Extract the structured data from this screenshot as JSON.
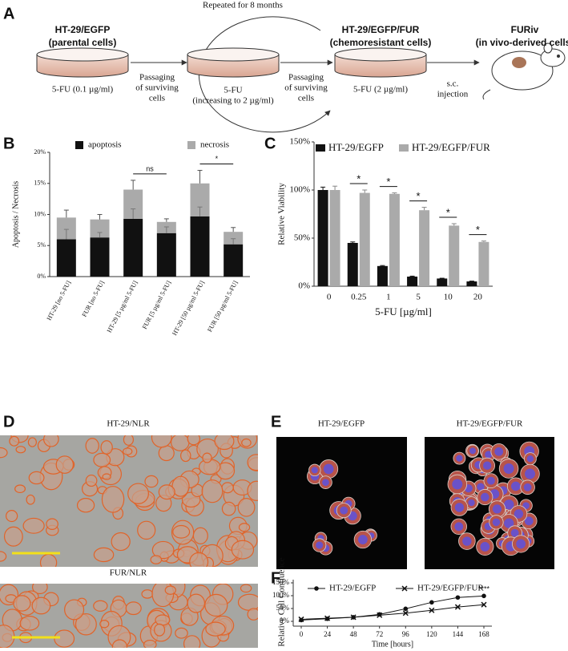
{
  "panels": [
    "A",
    "B",
    "C",
    "D",
    "E",
    "F"
  ],
  "diagram": {
    "loop": "Repeated for 8 months",
    "stages": [
      {
        "title": [
          "HT-29/EGFP",
          "(parental cells)"
        ],
        "treatment": [
          "5-FU (0.1 µg/ml)"
        ]
      },
      {
        "treatment": [
          "5-FU",
          "(increasing to 2 µg/ml)"
        ]
      },
      {
        "title": [
          "HT-29/EGFP/FUR",
          "(chemoresistant cells)"
        ],
        "treatment": [
          "5-FU (2 µg/ml)"
        ]
      },
      {
        "title": [
          "FURiv",
          "(in vivo-derived cells)"
        ]
      }
    ],
    "steps": [
      [
        "Passaging",
        "of surviving",
        "cells"
      ],
      [
        "Passaging",
        "of surviving",
        "cells"
      ],
      [
        "s.c.",
        "injection"
      ]
    ]
  },
  "images": {
    "D": [
      "HT-29/NLR",
      "FUR/NLR"
    ],
    "E": [
      "HT-29/EGFP",
      "HT-29/EGFP/FUR"
    ]
  },
  "chart_data": [
    {
      "type": "stacked_bar",
      "y_label": "Apoptosis / Necrosis",
      "categories": [
        "HT-29 [no 5-FU]",
        "FUR [no 5-FU]",
        "HT-29 [5 µg/ml 5-FU]",
        "FUR [5 µg/ml 5-FU]",
        "HT-29 [50 µg/ml 5-FU]",
        "FUR [50 µg/ml 5-FU]"
      ],
      "series": [
        {
          "name": "apoptosis",
          "color": "#111111",
          "values": [
            6.0,
            6.3,
            9.3,
            7.0,
            9.7,
            5.2
          ],
          "errors": [
            1.6,
            0.8,
            1.6,
            1.0,
            1.5,
            0.9
          ]
        },
        {
          "name": "necrosis",
          "color": "#aaaaaa",
          "values": [
            3.5,
            2.9,
            4.7,
            1.8,
            5.3,
            2.0
          ],
          "errors": [
            1.2,
            0.8,
            1.5,
            0.5,
            2.1,
            0.7
          ]
        }
      ],
      "ylim": [
        0,
        20
      ],
      "yticks": [
        {
          "value": 0,
          "label": "0%"
        },
        {
          "value": 5,
          "label": "5%"
        },
        {
          "value": 10,
          "label": "10%"
        },
        {
          "value": 15,
          "label": "15%"
        },
        {
          "value": 20,
          "label": "20%"
        }
      ],
      "annotations": [
        "ns",
        "*"
      ]
    },
    {
      "type": "grouped_bar",
      "x_label": "5-FU [µg/ml]",
      "y_label": "Relative Viability",
      "categories": [
        "0",
        "0.25",
        "1",
        "5",
        "10",
        "20"
      ],
      "series": [
        {
          "name": "HT-29/EGFP",
          "color": "#111111",
          "values": [
            100,
            45,
            21,
            10,
            8,
            5
          ],
          "errors": [
            3,
            1,
            0.5,
            0.5,
            0.3,
            0.3
          ]
        },
        {
          "name": "HT-29/EGFP/FUR",
          "color": "#aaaaaa",
          "values": [
            100,
            97,
            96,
            79,
            63,
            46
          ],
          "errors": [
            4,
            3,
            1,
            3,
            2,
            1
          ]
        }
      ],
      "significance": [
        null,
        "*",
        "*",
        "*",
        "*",
        "*"
      ],
      "ylim": [
        0,
        150
      ],
      "yticks": [
        {
          "value": 0,
          "label": "0%"
        },
        {
          "value": 50,
          "label": "50%"
        },
        {
          "value": 100,
          "label": "100%"
        },
        {
          "value": 150,
          "label": "150%"
        }
      ]
    },
    {
      "type": "line",
      "x_label": "Time [hours]",
      "y_label": "Relative Cell Confluence",
      "x": [
        0,
        24,
        48,
        72,
        96,
        120,
        144,
        168
      ],
      "series": [
        {
          "name": "HT-29/EGFP",
          "color": "#111111",
          "marker": "circle",
          "values": [
            5,
            10,
            16,
            27,
            49,
            74,
            93,
            99
          ]
        },
        {
          "name": "HT-29/EGFP/FUR",
          "color": "#111111",
          "marker": "x",
          "values": [
            8,
            12,
            16,
            24,
            32,
            43,
            56,
            65
          ]
        }
      ],
      "xlim": [
        0,
        168
      ],
      "xticks": [
        0,
        24,
        48,
        72,
        96,
        120,
        144,
        168
      ],
      "ylim": [
        0,
        150
      ],
      "yticks": [
        {
          "value": 0,
          "label": "0%"
        },
        {
          "value": 50,
          "label": "50%"
        },
        {
          "value": 100,
          "label": "100%"
        },
        {
          "value": 150,
          "label": "150%"
        }
      ],
      "annotation": "****"
    }
  ]
}
